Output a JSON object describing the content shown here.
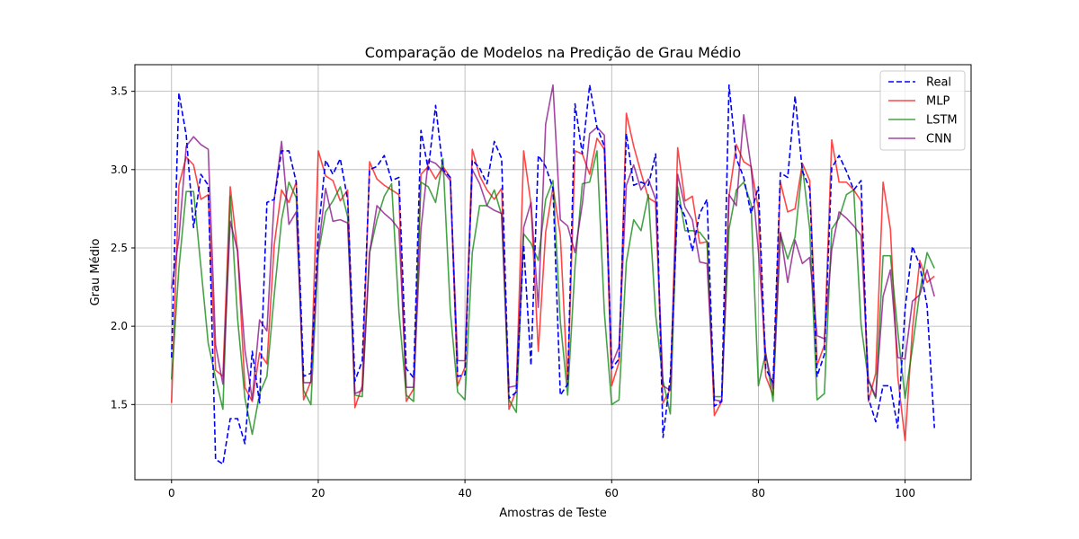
{
  "chart_data": {
    "type": "line",
    "title": "Comparação de Modelos na Predição de Grau Médio",
    "xlabel": "Amostras de Teste",
    "ylabel": "Grau Médio",
    "xlim": [
      -5,
      109
    ],
    "ylim": [
      1.02,
      3.67
    ],
    "xticks": [
      0,
      20,
      40,
      60,
      80,
      100
    ],
    "yticks": [
      1.5,
      2.0,
      2.5,
      3.0,
      3.5
    ],
    "xtick_labels": [
      "0",
      "20",
      "40",
      "60",
      "80",
      "100"
    ],
    "ytick_labels": [
      "1.5",
      "2.0",
      "2.5",
      "3.0",
      "3.5"
    ],
    "grid": true,
    "legend_position": "top-right",
    "series": [
      {
        "name": "Real",
        "color": "#0000ff",
        "style": "dashed",
        "values": [
          1.8,
          3.49,
          3.22,
          2.63,
          2.97,
          2.9,
          1.15,
          1.12,
          1.41,
          1.41,
          1.25,
          1.84,
          1.51,
          2.79,
          2.81,
          3.12,
          3.12,
          2.92,
          1.68,
          1.7,
          2.6,
          3.06,
          2.97,
          3.07,
          2.81,
          1.65,
          1.78,
          3.0,
          3.02,
          3.09,
          2.93,
          2.95,
          1.73,
          1.67,
          3.25,
          3.0,
          3.41,
          3.0,
          2.95,
          1.68,
          1.69,
          3.06,
          3.01,
          2.91,
          3.18,
          3.07,
          1.54,
          1.58,
          2.52,
          1.75,
          3.09,
          3.02,
          2.88,
          1.56,
          1.63,
          3.42,
          3.1,
          3.54,
          3.27,
          3.15,
          1.73,
          1.79,
          3.23,
          2.9,
          2.92,
          2.9,
          3.1,
          1.29,
          1.68,
          2.8,
          2.7,
          2.48,
          2.72,
          2.81,
          1.49,
          1.52,
          3.54,
          3.07,
          2.95,
          2.72,
          2.89,
          1.73,
          1.64,
          2.98,
          2.95,
          3.47,
          2.99,
          2.88,
          1.68,
          1.82,
          3.01,
          3.09,
          2.99,
          2.87,
          2.93,
          1.54,
          1.39,
          1.62,
          1.62,
          1.35,
          2.11,
          2.51,
          2.39,
          2.13,
          1.35
        ]
      },
      {
        "name": "MLP",
        "color": "#ff0000",
        "style": "solid",
        "values": [
          1.51,
          2.9,
          3.08,
          3.03,
          2.81,
          2.84,
          1.72,
          1.68,
          2.89,
          2.48,
          1.61,
          1.52,
          1.83,
          1.76,
          2.52,
          2.87,
          2.79,
          2.92,
          1.53,
          1.65,
          3.12,
          2.96,
          2.93,
          2.8,
          2.87,
          1.48,
          1.62,
          3.05,
          2.94,
          2.9,
          2.87,
          2.84,
          1.52,
          1.6,
          2.97,
          3.02,
          2.94,
          3.02,
          2.95,
          1.62,
          1.74,
          3.13,
          2.96,
          2.87,
          2.81,
          2.88,
          1.47,
          1.59,
          3.12,
          2.78,
          1.84,
          2.6,
          2.89,
          2.58,
          1.62,
          3.12,
          3.1,
          2.97,
          3.2,
          3.13,
          1.62,
          1.77,
          3.36,
          3.15,
          2.98,
          2.82,
          2.79,
          1.51,
          1.6,
          3.14,
          2.8,
          2.83,
          2.53,
          2.54,
          1.43,
          1.52,
          2.83,
          3.16,
          3.05,
          3.02,
          2.75,
          1.68,
          1.56,
          2.92,
          2.73,
          2.75,
          3.04,
          2.93,
          1.75,
          1.88,
          3.19,
          2.92,
          2.92,
          2.87,
          2.8,
          1.52,
          1.7,
          2.92,
          2.62,
          1.68,
          1.27,
          1.98,
          2.42,
          2.28,
          2.32
        ]
      },
      {
        "name": "LSTM",
        "color": "#008000",
        "style": "solid",
        "values": [
          1.66,
          2.37,
          2.86,
          2.86,
          2.38,
          1.89,
          1.67,
          1.47,
          2.83,
          2.05,
          1.54,
          1.31,
          1.57,
          1.68,
          2.2,
          2.68,
          2.92,
          2.82,
          1.59,
          1.5,
          2.46,
          2.73,
          2.8,
          2.89,
          2.7,
          1.56,
          1.55,
          2.47,
          2.68,
          2.83,
          2.91,
          2.09,
          1.56,
          1.52,
          2.92,
          2.89,
          2.79,
          3.07,
          2.1,
          1.58,
          1.53,
          2.47,
          2.77,
          2.77,
          2.87,
          2.71,
          1.53,
          1.45,
          2.59,
          2.53,
          2.42,
          2.81,
          2.93,
          2.03,
          1.56,
          2.38,
          2.91,
          2.92,
          3.12,
          2.09,
          1.5,
          1.53,
          2.41,
          2.68,
          2.61,
          2.84,
          2.07,
          1.65,
          1.44,
          2.89,
          2.61,
          2.61,
          2.6,
          2.54,
          1.55,
          1.55,
          2.62,
          2.87,
          2.92,
          2.78,
          1.62,
          1.83,
          1.52,
          2.59,
          2.43,
          2.57,
          3.02,
          2.62,
          1.53,
          1.57,
          2.62,
          2.69,
          2.84,
          2.87,
          2.01,
          1.65,
          1.54,
          2.45,
          2.45,
          1.97,
          1.54,
          1.86,
          2.22,
          2.47,
          2.37
        ]
      },
      {
        "name": "CNN",
        "color": "#800080",
        "style": "solid",
        "values": [
          2.24,
          2.56,
          3.15,
          3.21,
          3.16,
          3.13,
          1.88,
          1.63,
          2.67,
          2.48,
          1.85,
          1.53,
          2.04,
          1.97,
          2.81,
          3.18,
          2.65,
          2.73,
          1.64,
          1.64,
          2.49,
          2.88,
          2.67,
          2.68,
          2.66,
          1.57,
          1.59,
          2.47,
          2.77,
          2.72,
          2.68,
          2.62,
          1.61,
          1.61,
          2.62,
          3.06,
          3.04,
          2.99,
          2.93,
          1.78,
          1.78,
          3.0,
          2.91,
          2.77,
          2.74,
          2.72,
          1.61,
          1.62,
          2.63,
          2.79,
          2.12,
          3.29,
          3.54,
          2.68,
          2.64,
          2.47,
          2.78,
          3.23,
          3.27,
          3.22,
          1.75,
          1.87,
          2.9,
          3.03,
          2.87,
          2.94,
          2.81,
          1.62,
          1.59,
          2.97,
          2.76,
          2.68,
          2.41,
          2.4,
          1.53,
          1.52,
          2.84,
          2.77,
          3.35,
          3.02,
          2.48,
          1.82,
          1.6,
          2.6,
          2.28,
          2.55,
          2.4,
          2.44,
          1.94,
          1.92,
          2.49,
          2.73,
          2.69,
          2.64,
          2.58,
          1.66,
          1.55,
          2.19,
          2.36,
          1.8,
          1.79,
          2.16,
          2.2,
          2.36,
          2.19
        ]
      }
    ]
  }
}
